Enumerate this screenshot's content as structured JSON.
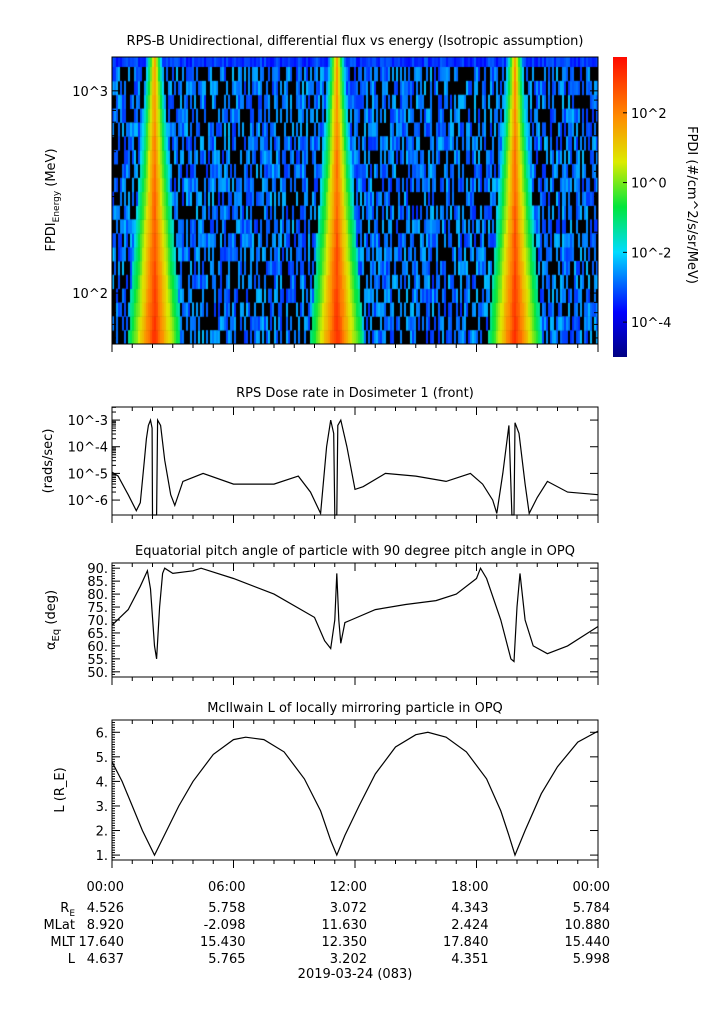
{
  "chart_data": [
    {
      "type": "heatmap",
      "title": "RPS-B  Unidirectional, differential flux vs energy (Isotropic assumption)",
      "ylabel": "FPDI_Energy (MeV)",
      "yscale": "log",
      "ylim": [
        56,
        1470
      ],
      "ytick_labels": [
        "10^2",
        "10^3"
      ],
      "xlim_hours": [
        0,
        24
      ],
      "colorbar": {
        "label": "FPDI (#/cm^2/s/sr/MeV)",
        "scale": "log",
        "range_log10": [
          -5.0,
          3.6
        ],
        "tick_labels": [
          "10^-4",
          "10^-2",
          "10^0",
          "10^2"
        ]
      },
      "note_high_flux_hours": [
        2.1,
        11.1,
        19.9
      ]
    },
    {
      "type": "line",
      "title": "RPS  Dose rate in Dosimeter 1 (front)",
      "ylabel": "(rads/sec)",
      "yscale": "log",
      "ylim_log10": [
        -6.56,
        -2.51
      ],
      "ytick_labels": [
        "10^-6",
        "10^-5",
        "10^-4",
        "10^-3"
      ],
      "series": [
        {
          "name": "dose",
          "points_log10": [
            [
              0,
              -4.95
            ],
            [
              0.3,
              -5.1
            ],
            [
              0.8,
              -5.8
            ],
            [
              1.2,
              -6.4
            ],
            [
              1.4,
              -6.1
            ],
            [
              1.6,
              -4.5
            ],
            [
              1.7,
              -3.7
            ],
            [
              1.8,
              -3.2
            ],
            [
              1.9,
              -3.0
            ],
            [
              1.98,
              -3.3
            ],
            [
              2.0,
              -6.6
            ],
            [
              2.2,
              -6.6
            ],
            [
              2.25,
              -3.0
            ],
            [
              2.4,
              -3.2
            ],
            [
              2.6,
              -4.5
            ],
            [
              2.9,
              -5.8
            ],
            [
              3.1,
              -6.2
            ],
            [
              3.5,
              -5.3
            ],
            [
              4.5,
              -5.0
            ],
            [
              6,
              -5.4
            ],
            [
              8,
              -5.4
            ],
            [
              9.2,
              -5.1
            ],
            [
              9.8,
              -5.7
            ],
            [
              10.3,
              -6.5
            ],
            [
              10.6,
              -4.0
            ],
            [
              10.8,
              -3.0
            ],
            [
              10.95,
              -3.5
            ],
            [
              11.0,
              -6.6
            ],
            [
              11.1,
              -6.6
            ],
            [
              11.15,
              -3.2
            ],
            [
              11.3,
              -3.0
            ],
            [
              11.6,
              -4.0
            ],
            [
              12,
              -5.6
            ],
            [
              12.4,
              -5.5
            ],
            [
              13.5,
              -5.0
            ],
            [
              15,
              -5.1
            ],
            [
              16.5,
              -5.3
            ],
            [
              17.7,
              -5.0
            ],
            [
              18.3,
              -5.4
            ],
            [
              18.8,
              -6.0
            ],
            [
              19.0,
              -6.5
            ],
            [
              19.3,
              -5.0
            ],
            [
              19.6,
              -3.2
            ],
            [
              19.75,
              -6.6
            ],
            [
              19.85,
              -6.6
            ],
            [
              19.9,
              -3.1
            ],
            [
              20.1,
              -3.5
            ],
            [
              20.4,
              -5.4
            ],
            [
              20.6,
              -6.5
            ],
            [
              21,
              -5.9
            ],
            [
              21.5,
              -5.3
            ],
            [
              22.5,
              -5.7
            ],
            [
              24,
              -5.8
            ]
          ]
        }
      ]
    },
    {
      "type": "line",
      "title": "Equatorial pitch angle of particle with 90 degree pitch angle in OPQ",
      "ylabel": "α_Eq (deg)",
      "ylim": [
        48,
        92
      ],
      "ytick_labels": [
        "50.",
        "55.",
        "60.",
        "65.",
        "70.",
        "75.",
        "80.",
        "85.",
        "90."
      ],
      "series": [
        {
          "name": "alpha_eq",
          "points": [
            [
              0,
              68
            ],
            [
              0.8,
              74
            ],
            [
              1.4,
              83
            ],
            [
              1.75,
              89
            ],
            [
              1.9,
              82
            ],
            [
              2.1,
              60
            ],
            [
              2.2,
              55
            ],
            [
              2.35,
              75
            ],
            [
              2.5,
              88
            ],
            [
              2.6,
              90
            ],
            [
              3,
              88
            ],
            [
              4,
              89
            ],
            [
              4.4,
              90
            ],
            [
              6,
              86
            ],
            [
              8,
              80
            ],
            [
              10,
              71
            ],
            [
              10.5,
              62
            ],
            [
              10.8,
              59
            ],
            [
              11.0,
              70
            ],
            [
              11.1,
              88
            ],
            [
              11.2,
              70
            ],
            [
              11.3,
              61
            ],
            [
              11.5,
              69
            ],
            [
              11.8,
              70
            ],
            [
              13,
              74
            ],
            [
              14.5,
              76
            ],
            [
              16,
              77.5
            ],
            [
              17,
              80
            ],
            [
              18,
              86
            ],
            [
              18.2,
              90
            ],
            [
              18.5,
              86
            ],
            [
              19.2,
              70
            ],
            [
              19.7,
              55
            ],
            [
              19.85,
              54
            ],
            [
              20.0,
              75
            ],
            [
              20.15,
              88
            ],
            [
              20.4,
              70
            ],
            [
              20.8,
              60
            ],
            [
              21.5,
              57
            ],
            [
              22.5,
              60
            ],
            [
              24,
              67.5
            ]
          ]
        }
      ]
    },
    {
      "type": "line",
      "title": "McIlwain L of locally mirroring particle in OPQ",
      "ylabel": "L (R_E)",
      "ylim": [
        0.8,
        6.5
      ],
      "ytick_labels": [
        "1.",
        "2.",
        "3.",
        "4.",
        "5.",
        "6."
      ],
      "series": [
        {
          "name": "L",
          "points": [
            [
              0,
              4.8
            ],
            [
              0.5,
              4.0
            ],
            [
              1,
              3.0
            ],
            [
              1.5,
              2.0
            ],
            [
              2.1,
              1.0
            ],
            [
              2.7,
              2.0
            ],
            [
              3.3,
              3.0
            ],
            [
              4,
              4.0
            ],
            [
              5,
              5.1
            ],
            [
              6,
              5.7
            ],
            [
              6.6,
              5.8
            ],
            [
              7.5,
              5.7
            ],
            [
              8.5,
              5.2
            ],
            [
              9.5,
              4.1
            ],
            [
              10.3,
              2.8
            ],
            [
              10.8,
              1.6
            ],
            [
              11.1,
              1.0
            ],
            [
              11.5,
              1.8
            ],
            [
              12.2,
              3.0
            ],
            [
              13,
              4.3
            ],
            [
              14,
              5.4
            ],
            [
              15,
              5.9
            ],
            [
              15.6,
              6.0
            ],
            [
              16.5,
              5.8
            ],
            [
              17.5,
              5.2
            ],
            [
              18.5,
              4.1
            ],
            [
              19.2,
              2.8
            ],
            [
              19.6,
              1.8
            ],
            [
              19.9,
              1.0
            ],
            [
              20.4,
              2.0
            ],
            [
              21.2,
              3.5
            ],
            [
              22,
              4.6
            ],
            [
              23,
              5.6
            ],
            [
              24,
              6.05
            ]
          ]
        }
      ]
    }
  ],
  "xaxis": {
    "time_labels": [
      "00:00",
      "06:00",
      "12:00",
      "18:00",
      "00:00"
    ],
    "rows": [
      {
        "label": "R",
        "sub": "E",
        "values": [
          "4.526",
          "5.758",
          "3.072",
          "4.343",
          "5.784"
        ]
      },
      {
        "label": "MLat",
        "sub": "",
        "values": [
          "8.920",
          "-2.098",
          "11.630",
          "2.424",
          "10.880"
        ]
      },
      {
        "label": "MLT",
        "sub": "",
        "values": [
          "17.640",
          "15.430",
          "12.350",
          "17.840",
          "15.440"
        ]
      },
      {
        "label": "L",
        "sub": "",
        "values": [
          "4.637",
          "5.765",
          "3.202",
          "4.351",
          "5.998"
        ]
      }
    ],
    "date": "2019-03-24 (083)"
  }
}
